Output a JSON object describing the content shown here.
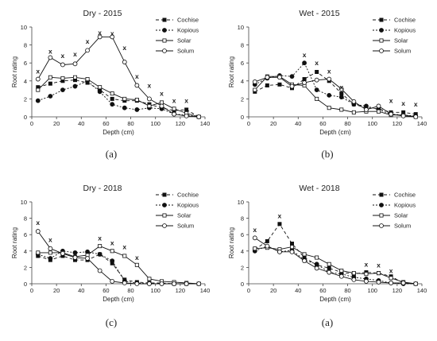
{
  "chart_data": [
    {
      "type": "line",
      "title": "Dry - 2015",
      "caption": "(a)",
      "xlabel": "Depth (cm)",
      "ylabel": "Root rating",
      "xlim": [
        0,
        140
      ],
      "ylim": [
        0,
        10
      ],
      "xticks": [
        0,
        20,
        40,
        60,
        80,
        100,
        120,
        140
      ],
      "yticks": [
        0,
        2,
        4,
        6,
        8,
        10
      ],
      "grid": false,
      "legend": "top-right",
      "x": [
        5,
        15,
        25,
        35,
        45,
        55,
        65,
        75,
        85,
        95,
        105,
        115,
        125,
        135
      ],
      "series": [
        {
          "name": "Cochise",
          "values": [
            3.3,
            3.7,
            4.0,
            4.1,
            3.8,
            3.0,
            2.0,
            1.8,
            1.8,
            1.4,
            1.0,
            0.7,
            0.8,
            0.0
          ]
        },
        {
          "name": "Kopious",
          "values": [
            1.8,
            2.3,
            3.0,
            3.4,
            4.0,
            2.8,
            1.4,
            1.0,
            0.8,
            1.0,
            0.9,
            0.3,
            0.2,
            0.0
          ]
        },
        {
          "name": "Solar",
          "values": [
            3.0,
            4.4,
            4.3,
            4.4,
            4.2,
            3.3,
            2.6,
            2.0,
            1.9,
            1.2,
            1.6,
            0.9,
            0.4,
            0.0
          ]
        },
        {
          "name": "Solum",
          "values": [
            4.2,
            6.6,
            5.8,
            5.9,
            7.4,
            8.9,
            8.9,
            6.1,
            3.5,
            2.0,
            1.2,
            0.3,
            0.1,
            0.0
          ]
        }
      ],
      "significance": {
        "label": "x",
        "x": [
          5,
          15,
          25,
          35,
          45,
          55,
          65,
          75,
          85,
          95,
          105,
          115,
          125
        ],
        "y": [
          5.1,
          7.3,
          6.8,
          7.0,
          8.4,
          9.4,
          9.3,
          7.7,
          4.5,
          3.5,
          2.6,
          1.8,
          1.8
        ]
      }
    },
    {
      "type": "line",
      "title": "Wet - 2015",
      "caption": "(b)",
      "xlabel": "Depth (cm)",
      "ylabel": "Root rating",
      "xlim": [
        0,
        140
      ],
      "ylim": [
        0,
        10
      ],
      "xticks": [
        0,
        20,
        40,
        60,
        80,
        100,
        120,
        140
      ],
      "yticks": [
        0,
        2,
        4,
        6,
        8,
        10
      ],
      "grid": false,
      "legend": "top-right",
      "x": [
        5,
        15,
        25,
        35,
        45,
        55,
        65,
        75,
        85,
        95,
        105,
        115,
        125,
        135
      ],
      "series": [
        {
          "name": "Cochise",
          "values": [
            2.8,
            3.5,
            3.6,
            3.2,
            4.2,
            5.0,
            4.0,
            2.6,
            1.4,
            1.0,
            0.9,
            0.5,
            0.5,
            0.3
          ]
        },
        {
          "name": "Kopious",
          "values": [
            3.6,
            4.3,
            4.6,
            4.5,
            6.0,
            3.0,
            2.4,
            2.2,
            1.4,
            1.2,
            0.8,
            0.3,
            0.2,
            0.1
          ]
        },
        {
          "name": "Solar",
          "values": [
            3.0,
            4.5,
            4.5,
            3.6,
            3.5,
            2.0,
            1.0,
            0.8,
            0.5,
            0.6,
            0.6,
            0.2,
            0.2,
            0.0
          ]
        },
        {
          "name": "Solum",
          "values": [
            3.9,
            4.4,
            4.4,
            3.4,
            3.8,
            4.1,
            4.2,
            3.1,
            1.7,
            0.8,
            1.2,
            0.3,
            0.1,
            0.0
          ]
        }
      ],
      "significance": {
        "label": "x",
        "x": [
          45,
          55,
          65,
          75,
          115,
          125,
          135
        ],
        "y": [
          6.9,
          6.0,
          5.1,
          3.3,
          1.8,
          1.5,
          1.4
        ]
      }
    },
    {
      "type": "line",
      "title": "Dry - 2018",
      "caption": "(c)",
      "xlabel": "Depth (cm)",
      "ylabel": "Root rating",
      "xlim": [
        0,
        140
      ],
      "ylim": [
        0,
        10
      ],
      "xticks": [
        0,
        20,
        40,
        60,
        80,
        100,
        120,
        140
      ],
      "yticks": [
        0,
        2,
        4,
        6,
        8,
        10
      ],
      "grid": false,
      "legend": "top-right",
      "x": [
        5,
        15,
        25,
        35,
        45,
        55,
        65,
        75,
        85,
        95,
        105,
        115,
        125,
        135
      ],
      "series": [
        {
          "name": "Cochise",
          "values": [
            3.4,
            2.9,
            3.4,
            2.9,
            2.9,
            3.6,
            2.5,
            0.5,
            0.2,
            0.1,
            0.1,
            0.0,
            0.0,
            0.0
          ]
        },
        {
          "name": "Kopious",
          "values": [
            3.6,
            3.1,
            4.0,
            3.8,
            3.9,
            3.6,
            2.8,
            0.3,
            0.1,
            0.0,
            0.0,
            0.0,
            0.0,
            0.0
          ]
        },
        {
          "name": "Solar",
          "values": [
            3.8,
            3.8,
            3.8,
            3.3,
            3.5,
            4.6,
            4.0,
            3.4,
            2.3,
            0.6,
            0.3,
            0.2,
            0.1,
            0.0
          ]
        },
        {
          "name": "Solum",
          "values": [
            6.4,
            4.3,
            3.7,
            3.2,
            3.1,
            1.6,
            0.3,
            0.1,
            0.0,
            0.0,
            0.0,
            0.0,
            0.0,
            0.0
          ]
        }
      ],
      "significance": {
        "label": "x",
        "x": [
          5,
          15,
          55,
          65,
          75,
          85
        ],
        "y": [
          7.5,
          5.4,
          5.6,
          5.0,
          4.5,
          3.2
        ]
      }
    },
    {
      "type": "line",
      "title": "Wet - 2018",
      "caption": "(a)",
      "xlabel": "Depth (cm)",
      "ylabel": "Root rating",
      "xlim": [
        0,
        140
      ],
      "ylim": [
        0,
        10
      ],
      "xticks": [
        0,
        20,
        40,
        60,
        80,
        100,
        120,
        140
      ],
      "yticks": [
        0,
        2,
        4,
        6,
        8,
        10
      ],
      "grid": false,
      "legend": "top-right",
      "x": [
        5,
        15,
        25,
        35,
        45,
        55,
        65,
        75,
        85,
        95,
        105,
        115,
        125,
        135
      ],
      "series": [
        {
          "name": "Cochise",
          "values": [
            4.2,
            5.2,
            7.3,
            4.9,
            3.2,
            2.3,
            1.9,
            1.4,
            1.2,
            1.4,
            1.3,
            0.9,
            0.1,
            0.0
          ]
        },
        {
          "name": "Kopious",
          "values": [
            4.0,
            4.6,
            3.9,
            4.1,
            2.9,
            2.4,
            1.4,
            1.2,
            0.8,
            0.6,
            0.4,
            0.1,
            0.0,
            0.0
          ]
        },
        {
          "name": "Solar",
          "values": [
            4.3,
            4.4,
            4.2,
            4.5,
            3.6,
            3.2,
            2.4,
            1.6,
            1.3,
            1.2,
            1.3,
            0.7,
            0.2,
            0.0
          ]
        },
        {
          "name": "Solum",
          "values": [
            5.6,
            4.6,
            3.9,
            3.9,
            2.8,
            1.9,
            1.4,
            0.9,
            0.5,
            0.3,
            0.2,
            0.1,
            0.1,
            0.0
          ]
        }
      ],
      "significance": {
        "label": "x",
        "x": [
          5,
          25,
          95,
          105,
          115
        ],
        "y": [
          6.6,
          8.3,
          2.4,
          2.3,
          1.6
        ]
      }
    }
  ]
}
